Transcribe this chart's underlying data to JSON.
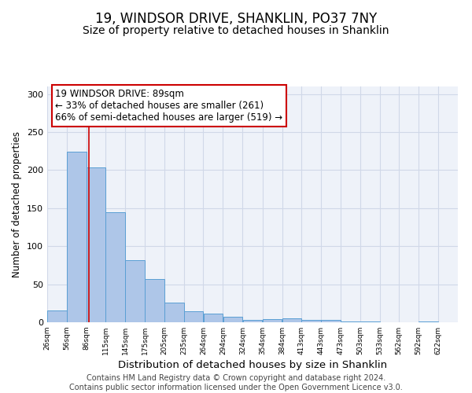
{
  "title": "19, WINDSOR DRIVE, SHANKLIN, PO37 7NY",
  "subtitle": "Size of property relative to detached houses in Shanklin",
  "xlabel": "Distribution of detached houses by size in Shanklin",
  "ylabel": "Number of detached properties",
  "bar_left_edges": [
    26,
    56,
    86,
    115,
    145,
    175,
    205,
    235,
    264,
    294,
    324,
    354,
    384,
    413,
    443,
    473,
    503,
    533,
    562,
    592
  ],
  "bar_widths": [
    30,
    30,
    29,
    30,
    30,
    30,
    30,
    29,
    30,
    30,
    30,
    30,
    29,
    30,
    30,
    30,
    30,
    29,
    30,
    30
  ],
  "bar_heights": [
    16,
    224,
    204,
    145,
    82,
    57,
    26,
    14,
    11,
    7,
    3,
    4,
    5,
    3,
    3,
    1,
    1,
    0,
    0,
    1
  ],
  "bar_color": "#aec6e8",
  "bar_edge_color": "#5a9fd4",
  "vline_x": 89,
  "vline_color": "#cc0000",
  "annotation_text_line1": "19 WINDSOR DRIVE: 89sqm",
  "annotation_text_line2": "← 33% of detached houses are smaller (261)",
  "annotation_text_line3": "66% of semi-detached houses are larger (519) →",
  "box_edge_color": "#cc0000",
  "ylim": [
    0,
    310
  ],
  "xlim": [
    26,
    652
  ],
  "xtick_labels": [
    "26sqm",
    "56sqm",
    "86sqm",
    "115sqm",
    "145sqm",
    "175sqm",
    "205sqm",
    "235sqm",
    "264sqm",
    "294sqm",
    "324sqm",
    "354sqm",
    "384sqm",
    "413sqm",
    "443sqm",
    "473sqm",
    "503sqm",
    "533sqm",
    "562sqm",
    "592sqm",
    "622sqm"
  ],
  "xtick_positions": [
    26,
    56,
    86,
    115,
    145,
    175,
    205,
    235,
    264,
    294,
    324,
    354,
    384,
    413,
    443,
    473,
    503,
    533,
    562,
    592,
    622
  ],
  "grid_color": "#d0d8e8",
  "background_color": "#eef2f9",
  "footer_text": "Contains HM Land Registry data © Crown copyright and database right 2024.\nContains public sector information licensed under the Open Government Licence v3.0.",
  "title_fontsize": 12,
  "subtitle_fontsize": 10,
  "xlabel_fontsize": 9.5,
  "ylabel_fontsize": 8.5,
  "annotation_fontsize": 8.5,
  "footer_fontsize": 7,
  "yticks": [
    0,
    50,
    100,
    150,
    200,
    250,
    300
  ]
}
